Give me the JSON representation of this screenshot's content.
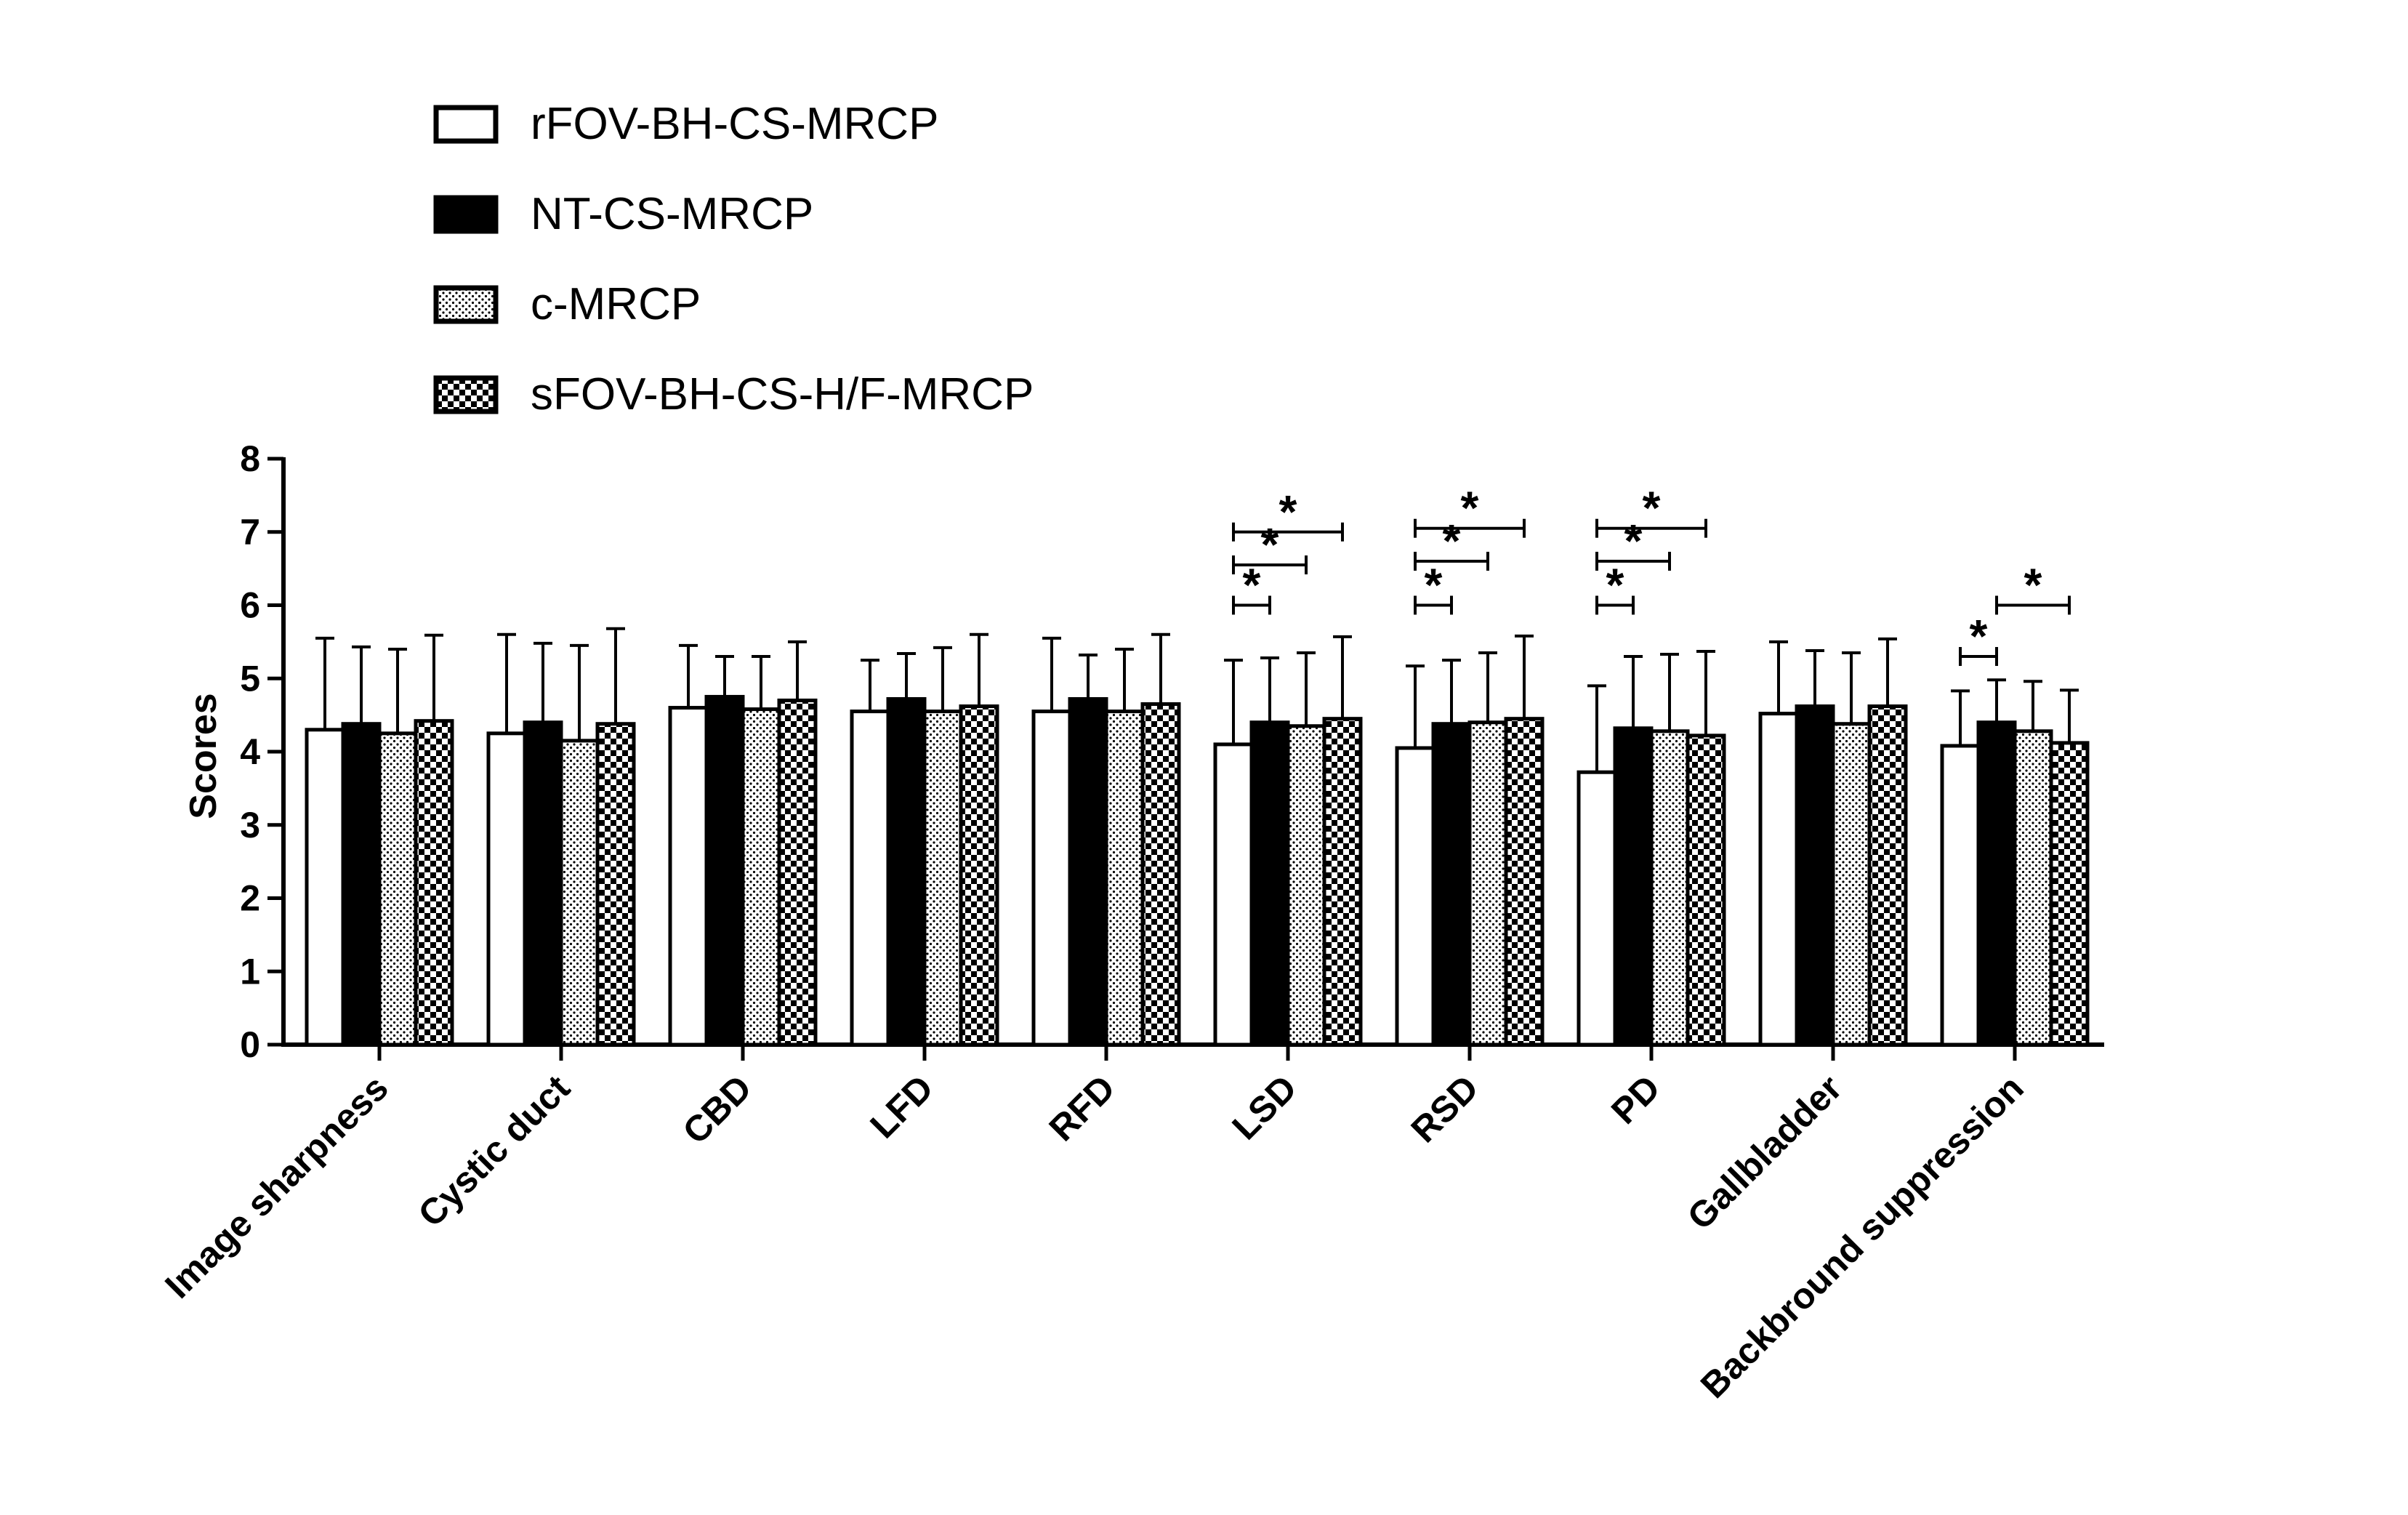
{
  "chart_data": {
    "type": "bar",
    "title": "",
    "xlabel": "",
    "ylabel": "Scores",
    "ylim": [
      0,
      8
    ],
    "yticks": [
      "0",
      "1",
      "2",
      "3",
      "4",
      "5",
      "6",
      "7",
      "8"
    ],
    "categories": [
      "Image sharpness",
      "Cystic duct",
      "CBD",
      "LFD",
      "RFD",
      "LSD",
      "RSD",
      "PD",
      "Gallbladder",
      "Backbround suppression"
    ],
    "legend_position": "top-left",
    "series": [
      {
        "name": "rFOV-BH-CS-MRCP",
        "pattern": "open",
        "values": [
          4.3,
          4.25,
          4.6,
          4.55,
          4.55,
          4.1,
          4.05,
          3.72,
          4.52,
          4.08
        ],
        "error": [
          1.25,
          1.35,
          0.85,
          0.7,
          1.0,
          1.15,
          1.12,
          1.18,
          0.98,
          0.75
        ]
      },
      {
        "name": "NT-CS-MRCP",
        "pattern": "solid",
        "values": [
          4.38,
          4.4,
          4.75,
          4.72,
          4.72,
          4.4,
          4.38,
          4.32,
          4.62,
          4.4
        ],
        "error": [
          1.05,
          1.08,
          0.55,
          0.62,
          0.6,
          0.88,
          0.87,
          0.98,
          0.76,
          0.58
        ]
      },
      {
        "name": "c-MRCP",
        "pattern": "dotted",
        "values": [
          4.25,
          4.15,
          4.58,
          4.55,
          4.55,
          4.35,
          4.4,
          4.28,
          4.38,
          4.28
        ],
        "error": [
          1.15,
          1.3,
          0.72,
          0.87,
          0.85,
          1.0,
          0.95,
          1.05,
          0.97,
          0.68
        ]
      },
      {
        "name": "sFOV-BH-CS-H/F-MRCP",
        "pattern": "checkered",
        "values": [
          4.42,
          4.38,
          4.7,
          4.62,
          4.65,
          4.45,
          4.45,
          4.22,
          4.62,
          4.12
        ],
        "error": [
          1.17,
          1.3,
          0.8,
          0.98,
          0.95,
          1.12,
          1.13,
          1.15,
          0.92,
          0.72
        ]
      }
    ],
    "significance": [
      {
        "category": "LSD",
        "from": 0,
        "to": 1,
        "level": 6.0,
        "label": "*"
      },
      {
        "category": "LSD",
        "from": 0,
        "to": 2,
        "level": 6.55,
        "label": "*"
      },
      {
        "category": "LSD",
        "from": 0,
        "to": 3,
        "level": 7.0,
        "label": "*"
      },
      {
        "category": "RSD",
        "from": 0,
        "to": 1,
        "level": 6.0,
        "label": "*"
      },
      {
        "category": "RSD",
        "from": 0,
        "to": 2,
        "level": 6.6,
        "label": "*"
      },
      {
        "category": "RSD",
        "from": 0,
        "to": 3,
        "level": 7.05,
        "label": "*"
      },
      {
        "category": "PD",
        "from": 0,
        "to": 1,
        "level": 6.0,
        "label": "*"
      },
      {
        "category": "PD",
        "from": 0,
        "to": 2,
        "level": 6.6,
        "label": "*"
      },
      {
        "category": "PD",
        "from": 0,
        "to": 3,
        "level": 7.05,
        "label": "*"
      },
      {
        "category": "Backbround suppression",
        "from": 0,
        "to": 1,
        "level": 5.3,
        "label": "*"
      },
      {
        "category": "Backbround suppression",
        "from": 1,
        "to": 3,
        "level": 6.0,
        "label": "*"
      }
    ]
  }
}
